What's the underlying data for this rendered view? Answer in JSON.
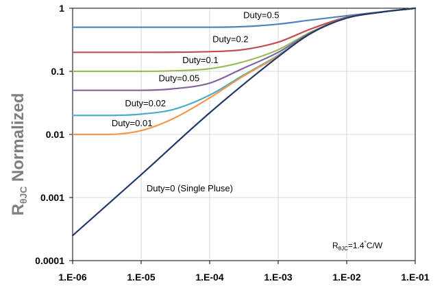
{
  "chart_data": {
    "type": "line",
    "xscale": "log",
    "yscale": "log",
    "xlim": [
      1e-06,
      0.1
    ],
    "ylim": [
      0.0001,
      1
    ],
    "grid": true,
    "x_ticks": [
      {
        "value": 1e-06,
        "label": "1.E-06"
      },
      {
        "value": 1e-05,
        "label": "1.E-05"
      },
      {
        "value": 0.0001,
        "label": "1.E-04"
      },
      {
        "value": 0.001,
        "label": "1.E-03"
      },
      {
        "value": 0.01,
        "label": "1.E-02"
      },
      {
        "value": 0.1,
        "label": "1.E-01"
      }
    ],
    "y_ticks": [
      {
        "value": 1,
        "label": "1"
      },
      {
        "value": 0.1,
        "label": "0.1"
      },
      {
        "value": 0.01,
        "label": "0.01"
      },
      {
        "value": 0.001,
        "label": "0.001"
      },
      {
        "value": 0.0001,
        "label": "0.0001"
      }
    ],
    "ylabel": {
      "main": "R",
      "sub": "θJC",
      "rest": " Normalized"
    },
    "annotation": {
      "main": "R",
      "sub": "θJC",
      "mid": "=1.4",
      "sup": "°",
      "rest": "C/W"
    },
    "series": [
      {
        "name": "Duty=0.5",
        "color": "#4f81bd",
        "label_x": 0.00031,
        "label_y": 0.7,
        "x": [
          1e-06,
          1e-05,
          0.0001,
          0.0003,
          0.001,
          0.003,
          0.01,
          0.03,
          0.1
        ],
        "y": [
          0.5,
          0.5,
          0.5,
          0.51,
          0.56,
          0.65,
          0.76,
          0.87,
          1.0
        ]
      },
      {
        "name": "Duty=0.2",
        "color": "#c0504d",
        "label_x": 0.00011,
        "label_y": 0.29,
        "x": [
          1e-06,
          1e-05,
          0.0001,
          0.0003,
          0.001,
          0.003,
          0.01,
          0.03,
          0.1
        ],
        "y": [
          0.2,
          0.2,
          0.205,
          0.22,
          0.29,
          0.47,
          0.72,
          0.86,
          1.0
        ]
      },
      {
        "name": "Duty=0.1",
        "color": "#9bbb59",
        "label_x": 4e-05,
        "label_y": 0.135,
        "x": [
          1e-06,
          1e-05,
          3e-05,
          0.0001,
          0.0003,
          0.001,
          0.003,
          0.01,
          0.03,
          0.1
        ],
        "y": [
          0.1,
          0.1,
          0.102,
          0.11,
          0.14,
          0.22,
          0.42,
          0.71,
          0.86,
          1.0
        ]
      },
      {
        "name": "Duty=0.05",
        "color": "#8064a2",
        "label_x": 1.8e-05,
        "label_y": 0.07,
        "x": [
          1e-06,
          3e-06,
          1e-05,
          3e-05,
          0.0001,
          0.0003,
          0.001,
          0.003,
          0.01,
          0.03,
          0.1
        ],
        "y": [
          0.05,
          0.05,
          0.05,
          0.053,
          0.065,
          0.11,
          0.2,
          0.41,
          0.71,
          0.86,
          1.0
        ]
      },
      {
        "name": "Duty=0.02",
        "color": "#4bacc6",
        "label_x": 5.8e-06,
        "label_y": 0.028,
        "x": [
          1e-06,
          3e-06,
          1e-05,
          3e-05,
          0.0001,
          0.0003,
          0.001,
          0.003,
          0.01,
          0.03,
          0.1
        ],
        "y": [
          0.02,
          0.02,
          0.021,
          0.025,
          0.042,
          0.085,
          0.18,
          0.4,
          0.7,
          0.86,
          1.0
        ]
      },
      {
        "name": "Duty=0.01",
        "color": "#f79646",
        "label_x": 3.7e-06,
        "label_y": 0.0135,
        "x": [
          1e-06,
          3e-06,
          1e-05,
          3e-05,
          0.0001,
          0.0003,
          0.001,
          0.003,
          0.01,
          0.03,
          0.1
        ],
        "y": [
          0.01,
          0.01,
          0.0115,
          0.018,
          0.038,
          0.082,
          0.175,
          0.4,
          0.7,
          0.86,
          1.0
        ]
      },
      {
        "name": "Duty=0 (Single Pluse)",
        "color": "#1f3864",
        "label_x": 1.2e-05,
        "label_y": 0.00125,
        "x": [
          1e-06,
          1e-05,
          0.0001,
          0.001,
          0.003,
          0.01,
          0.03,
          0.1
        ],
        "y": [
          0.00025,
          0.0023,
          0.022,
          0.17,
          0.4,
          0.7,
          0.86,
          1.0
        ]
      }
    ]
  }
}
